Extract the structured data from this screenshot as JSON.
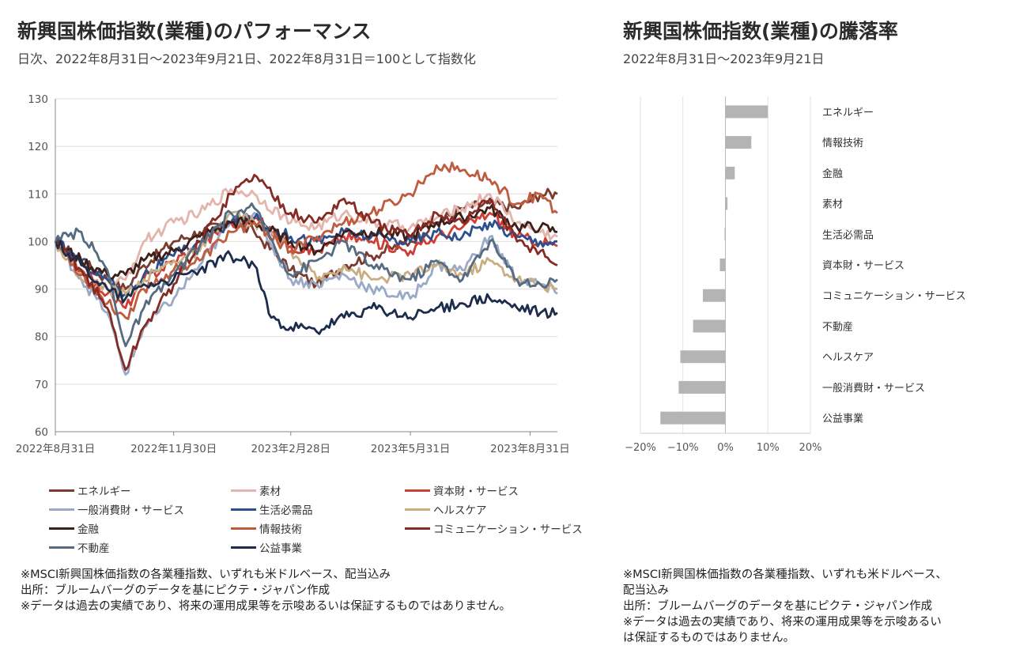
{
  "left": {
    "title": "新興国株価指数(業種)のパフォーマンス",
    "subtitle": "日次、2022年8月31日～2023年9月21日、2022年8月31日＝100として指数化",
    "notes": [
      "※MSCI新興国株価指数の各業種指数、いずれも米ドルベース、配当込み",
      "出所：ブルームバーグのデータを基にピクテ・ジャパン作成",
      "※データは過去の実績であり、将来の運用成果等を示唆あるいは保証するものではありません。"
    ]
  },
  "right": {
    "title": "新興国株価指数(業種)の騰落率",
    "subtitle": "2022年8月31日～2023年9月21日",
    "notes": [
      "※MSCI新興国株価指数の各業種指数、いずれも米ドルベース、",
      "配当込み",
      "出所：ブルームバーグのデータを基にピクテ・ジャパン作成",
      "※データは過去の実績であり、将来の運用成果等を示唆あるい",
      "は保証するものではありません。"
    ]
  },
  "chart_data": [
    {
      "type": "line",
      "ylim": [
        60,
        130
      ],
      "yticks": [
        60,
        70,
        80,
        90,
        100,
        110,
        120,
        130
      ],
      "xlim": [
        "2022-08-31",
        "2023-09-21"
      ],
      "xticks": [
        {
          "date": "2022-08-31",
          "label": "2022年8月31日"
        },
        {
          "date": "2022-11-30",
          "label": "2022年11月30日"
        },
        {
          "date": "2023-02-28",
          "label": "2023年2月28日"
        },
        {
          "date": "2023-05-31",
          "label": "2023年5月31日"
        },
        {
          "date": "2023-08-31",
          "label": "2023年8月31日"
        }
      ],
      "grid": true,
      "legend_position": "bottom",
      "series": [
        {
          "name": "エネルギー",
          "color": "#7b3b2e",
          "points": [
            [
              "2022-08-31",
              100
            ],
            [
              "2022-09-20",
              96
            ],
            [
              "2022-10-10",
              92
            ],
            [
              "2022-10-24",
              90
            ],
            [
              "2022-11-07",
              95
            ],
            [
              "2022-11-30",
              100
            ],
            [
              "2022-12-20",
              102
            ],
            [
              "2023-01-13",
              104
            ],
            [
              "2023-01-31",
              102
            ],
            [
              "2023-02-28",
              94
            ],
            [
              "2023-03-20",
              91
            ],
            [
              "2023-04-10",
              95
            ],
            [
              "2023-05-01",
              97
            ],
            [
              "2023-05-31",
              100
            ],
            [
              "2023-06-20",
              104
            ],
            [
              "2023-07-10",
              107
            ],
            [
              "2023-07-31",
              108
            ],
            [
              "2023-08-21",
              107
            ],
            [
              "2023-09-08",
              110
            ],
            [
              "2023-09-21",
              110
            ]
          ]
        },
        {
          "name": "素材",
          "color": "#e3b5ad",
          "points": [
            [
              "2022-08-31",
              100
            ],
            [
              "2022-09-20",
              93
            ],
            [
              "2022-10-10",
              90
            ],
            [
              "2022-10-24",
              92
            ],
            [
              "2022-11-07",
              100
            ],
            [
              "2022-11-30",
              104
            ],
            [
              "2022-12-20",
              106
            ],
            [
              "2023-01-13",
              111
            ],
            [
              "2023-01-31",
              110
            ],
            [
              "2023-02-28",
              104
            ],
            [
              "2023-03-20",
              103
            ],
            [
              "2023-04-10",
              106
            ],
            [
              "2023-05-01",
              104
            ],
            [
              "2023-05-31",
              103
            ],
            [
              "2023-06-20",
              105
            ],
            [
              "2023-07-10",
              107
            ],
            [
              "2023-07-31",
              110
            ],
            [
              "2023-08-21",
              104
            ],
            [
              "2023-09-08",
              102
            ],
            [
              "2023-09-21",
              101
            ]
          ]
        },
        {
          "name": "資本財・サービス",
          "color": "#cf3e34",
          "points": [
            [
              "2022-08-31",
              100
            ],
            [
              "2022-09-20",
              94
            ],
            [
              "2022-10-10",
              89
            ],
            [
              "2022-10-24",
              86
            ],
            [
              "2022-11-07",
              92
            ],
            [
              "2022-11-30",
              96
            ],
            [
              "2022-12-20",
              99
            ],
            [
              "2023-01-13",
              104
            ],
            [
              "2023-01-31",
              105
            ],
            [
              "2023-02-28",
              99
            ],
            [
              "2023-03-20",
              98
            ],
            [
              "2023-04-10",
              101
            ],
            [
              "2023-05-01",
              100
            ],
            [
              "2023-05-31",
              98
            ],
            [
              "2023-06-20",
              101
            ],
            [
              "2023-07-10",
              103
            ],
            [
              "2023-07-31",
              106
            ],
            [
              "2023-08-21",
              101
            ],
            [
              "2023-09-08",
              100
            ],
            [
              "2023-09-21",
              99
            ]
          ]
        },
        {
          "name": "一般消費財・サービス",
          "color": "#9aaac6",
          "points": [
            [
              "2022-08-31",
              100
            ],
            [
              "2022-09-20",
              92
            ],
            [
              "2022-10-10",
              85
            ],
            [
              "2022-10-24",
              72
            ],
            [
              "2022-11-07",
              82
            ],
            [
              "2022-11-30",
              88
            ],
            [
              "2022-12-20",
              95
            ],
            [
              "2023-01-13",
              104
            ],
            [
              "2023-01-31",
              106
            ],
            [
              "2023-02-28",
              92
            ],
            [
              "2023-03-20",
              91
            ],
            [
              "2023-04-10",
              93
            ],
            [
              "2023-05-01",
              90
            ],
            [
              "2023-05-31",
              88
            ],
            [
              "2023-06-20",
              95
            ],
            [
              "2023-07-10",
              94
            ],
            [
              "2023-07-31",
              101
            ],
            [
              "2023-08-21",
              92
            ],
            [
              "2023-09-08",
              91
            ],
            [
              "2023-09-21",
              89
            ]
          ]
        },
        {
          "name": "生活必需品",
          "color": "#2e4f8e",
          "points": [
            [
              "2022-08-31",
              100
            ],
            [
              "2022-09-20",
              96
            ],
            [
              "2022-10-10",
              92
            ],
            [
              "2022-10-24",
              89
            ],
            [
              "2022-11-07",
              93
            ],
            [
              "2022-11-30",
              97
            ],
            [
              "2022-12-20",
              100
            ],
            [
              "2023-01-13",
              104
            ],
            [
              "2023-01-31",
              105
            ],
            [
              "2023-02-28",
              101
            ],
            [
              "2023-03-20",
              100
            ],
            [
              "2023-04-10",
              102
            ],
            [
              "2023-05-01",
              101
            ],
            [
              "2023-05-31",
              100
            ],
            [
              "2023-06-20",
              102
            ],
            [
              "2023-07-10",
              101
            ],
            [
              "2023-07-31",
              104
            ],
            [
              "2023-08-21",
              101
            ],
            [
              "2023-09-08",
              100
            ],
            [
              "2023-09-21",
              100
            ]
          ]
        },
        {
          "name": "ヘルスケア",
          "color": "#c9ae84",
          "points": [
            [
              "2022-08-31",
              100
            ],
            [
              "2022-09-20",
              92
            ],
            [
              "2022-10-10",
              90
            ],
            [
              "2022-10-24",
              89
            ],
            [
              "2022-11-07",
              92
            ],
            [
              "2022-11-30",
              96
            ],
            [
              "2022-12-20",
              98
            ],
            [
              "2023-01-13",
              106
            ],
            [
              "2023-01-31",
              104
            ],
            [
              "2023-02-28",
              98
            ],
            [
              "2023-03-20",
              92
            ],
            [
              "2023-04-10",
              95
            ],
            [
              "2023-05-01",
              92
            ],
            [
              "2023-05-31",
              93
            ],
            [
              "2023-06-20",
              95
            ],
            [
              "2023-07-10",
              93
            ],
            [
              "2023-07-31",
              96
            ],
            [
              "2023-08-21",
              92
            ],
            [
              "2023-09-08",
              91
            ],
            [
              "2023-09-21",
              90
            ]
          ]
        },
        {
          "name": "金融",
          "color": "#3c1f1a",
          "points": [
            [
              "2022-08-31",
              100
            ],
            [
              "2022-09-20",
              96
            ],
            [
              "2022-10-10",
              93
            ],
            [
              "2022-10-24",
              93
            ],
            [
              "2022-11-07",
              96
            ],
            [
              "2022-11-30",
              98
            ],
            [
              "2022-12-20",
              101
            ],
            [
              "2023-01-13",
              104
            ],
            [
              "2023-01-31",
              104
            ],
            [
              "2023-02-28",
              100
            ],
            [
              "2023-03-20",
              98
            ],
            [
              "2023-04-10",
              102
            ],
            [
              "2023-05-01",
              102
            ],
            [
              "2023-05-31",
              101
            ],
            [
              "2023-06-20",
              104
            ],
            [
              "2023-07-10",
              105
            ],
            [
              "2023-07-31",
              107
            ],
            [
              "2023-08-21",
              103
            ],
            [
              "2023-09-08",
              103
            ],
            [
              "2023-09-21",
              102
            ]
          ]
        },
        {
          "name": "情報技術",
          "color": "#bf5b3f",
          "points": [
            [
              "2022-08-31",
              100
            ],
            [
              "2022-09-20",
              93
            ],
            [
              "2022-10-10",
              87
            ],
            [
              "2022-10-24",
              84
            ],
            [
              "2022-11-07",
              90
            ],
            [
              "2022-11-30",
              94
            ],
            [
              "2022-12-20",
              96
            ],
            [
              "2023-01-13",
              102
            ],
            [
              "2023-01-31",
              104
            ],
            [
              "2023-02-28",
              98
            ],
            [
              "2023-03-20",
              101
            ],
            [
              "2023-04-10",
              104
            ],
            [
              "2023-05-01",
              106
            ],
            [
              "2023-05-31",
              110
            ],
            [
              "2023-06-20",
              116
            ],
            [
              "2023-07-10",
              115
            ],
            [
              "2023-07-31",
              113
            ],
            [
              "2023-08-21",
              108
            ],
            [
              "2023-09-08",
              110
            ],
            [
              "2023-09-21",
              106
            ]
          ]
        },
        {
          "name": "コミュニケーション・サービス",
          "color": "#862a24",
          "points": [
            [
              "2022-08-31",
              100
            ],
            [
              "2022-09-20",
              94
            ],
            [
              "2022-10-10",
              86
            ],
            [
              "2022-10-24",
              73
            ],
            [
              "2022-11-07",
              82
            ],
            [
              "2022-11-30",
              91
            ],
            [
              "2022-12-20",
              100
            ],
            [
              "2023-01-13",
              110
            ],
            [
              "2023-01-31",
              114
            ],
            [
              "2023-02-28",
              106
            ],
            [
              "2023-03-20",
              104
            ],
            [
              "2023-04-10",
              109
            ],
            [
              "2023-05-01",
              104
            ],
            [
              "2023-05-31",
              101
            ],
            [
              "2023-06-20",
              106
            ],
            [
              "2023-07-10",
              104
            ],
            [
              "2023-07-31",
              109
            ],
            [
              "2023-08-21",
              100
            ],
            [
              "2023-09-08",
              98
            ],
            [
              "2023-09-21",
              95
            ]
          ]
        },
        {
          "name": "不動産",
          "color": "#566a80",
          "points": [
            [
              "2022-08-31",
              100
            ],
            [
              "2022-09-20",
              102
            ],
            [
              "2022-10-10",
              94
            ],
            [
              "2022-10-24",
              78
            ],
            [
              "2022-11-07",
              86
            ],
            [
              "2022-11-30",
              93
            ],
            [
              "2022-12-20",
              99
            ],
            [
              "2023-01-13",
              106
            ],
            [
              "2023-01-31",
              107
            ],
            [
              "2023-02-28",
              93
            ],
            [
              "2023-03-20",
              96
            ],
            [
              "2023-04-10",
              100
            ],
            [
              "2023-05-01",
              95
            ],
            [
              "2023-05-31",
              92
            ],
            [
              "2023-06-20",
              96
            ],
            [
              "2023-07-10",
              92
            ],
            [
              "2023-07-31",
              100
            ],
            [
              "2023-08-21",
              92
            ],
            [
              "2023-09-08",
              91
            ],
            [
              "2023-09-21",
              92
            ]
          ]
        },
        {
          "name": "公益事業",
          "color": "#1c2c4c",
          "points": [
            [
              "2022-08-31",
              100
            ],
            [
              "2022-09-20",
              95
            ],
            [
              "2022-10-10",
              90
            ],
            [
              "2022-10-24",
              88
            ],
            [
              "2022-11-07",
              91
            ],
            [
              "2022-11-30",
              92
            ],
            [
              "2022-12-20",
              94
            ],
            [
              "2023-01-13",
              97
            ],
            [
              "2023-01-31",
              95
            ],
            [
              "2023-02-13",
              84
            ],
            [
              "2023-02-28",
              82
            ],
            [
              "2023-03-20",
              81
            ],
            [
              "2023-04-10",
              84
            ],
            [
              "2023-05-01",
              86
            ],
            [
              "2023-05-31",
              84
            ],
            [
              "2023-06-20",
              86
            ],
            [
              "2023-07-10",
              87
            ],
            [
              "2023-07-31",
              88
            ],
            [
              "2023-08-21",
              86
            ],
            [
              "2023-09-08",
              85
            ],
            [
              "2023-09-21",
              85
            ]
          ]
        }
      ]
    },
    {
      "type": "bar",
      "orientation": "horizontal",
      "xlim": [
        -20,
        20
      ],
      "xticks": [
        -20,
        -10,
        0,
        10,
        20
      ],
      "xtick_labels": [
        "−20%",
        "−10%",
        "0%",
        "10%",
        "20%"
      ],
      "grid": true,
      "bar_color": "#b4b4b4",
      "categories": [
        "エネルギー",
        "情報技術",
        "金融",
        "素材",
        "生活必需品",
        "資本財・サービス",
        "コミュニケーション・サービス",
        "不動産",
        "ヘルスケア",
        "一般消費財・サービス",
        "公益事業"
      ],
      "values": [
        10.0,
        6.1,
        2.2,
        0.5,
        -0.2,
        -1.3,
        -5.3,
        -7.6,
        -10.6,
        -11.0,
        -15.3
      ]
    }
  ]
}
